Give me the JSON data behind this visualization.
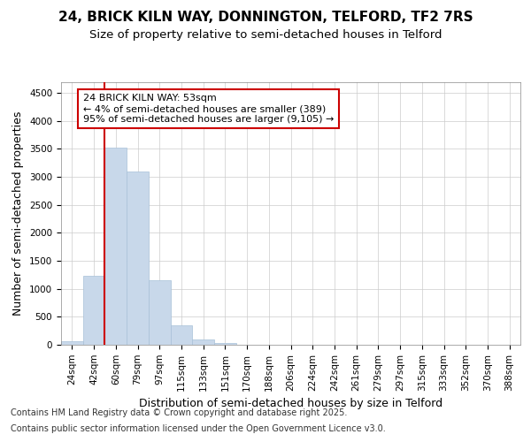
{
  "title_line1": "24, BRICK KILN WAY, DONNINGTON, TELFORD, TF2 7RS",
  "title_line2": "Size of property relative to semi-detached houses in Telford",
  "xlabel": "Distribution of semi-detached houses by size in Telford",
  "ylabel": "Number of semi-detached properties",
  "categories": [
    "24sqm",
    "42sqm",
    "60sqm",
    "79sqm",
    "97sqm",
    "115sqm",
    "133sqm",
    "151sqm",
    "170sqm",
    "188sqm",
    "206sqm",
    "224sqm",
    "242sqm",
    "261sqm",
    "279sqm",
    "297sqm",
    "315sqm",
    "333sqm",
    "352sqm",
    "370sqm",
    "388sqm"
  ],
  "values": [
    70,
    1230,
    3520,
    3100,
    1150,
    350,
    100,
    30,
    5,
    2,
    1,
    0,
    0,
    0,
    0,
    0,
    0,
    0,
    0,
    0,
    0
  ],
  "bar_color": "#c8d8ea",
  "bar_edge_color": "#a8c0d8",
  "annotation_box_text": "24 BRICK KILN WAY: 53sqm\n← 4% of semi-detached houses are smaller (389)\n95% of semi-detached houses are larger (9,105) →",
  "annotation_box_color": "#ffffff",
  "annotation_box_edge_color": "#cc0000",
  "vline_bar_index": 1,
  "vline_color": "#cc0000",
  "ylim": [
    0,
    4700
  ],
  "yticks": [
    0,
    500,
    1000,
    1500,
    2000,
    2500,
    3000,
    3500,
    4000,
    4500
  ],
  "background_color": "#ffffff",
  "grid_color": "#cccccc",
  "footer_line1": "Contains HM Land Registry data © Crown copyright and database right 2025.",
  "footer_line2": "Contains public sector information licensed under the Open Government Licence v3.0.",
  "title_fontsize": 11,
  "subtitle_fontsize": 9.5,
  "axis_label_fontsize": 9,
  "tick_fontsize": 7.5,
  "annotation_fontsize": 8,
  "footer_fontsize": 7
}
